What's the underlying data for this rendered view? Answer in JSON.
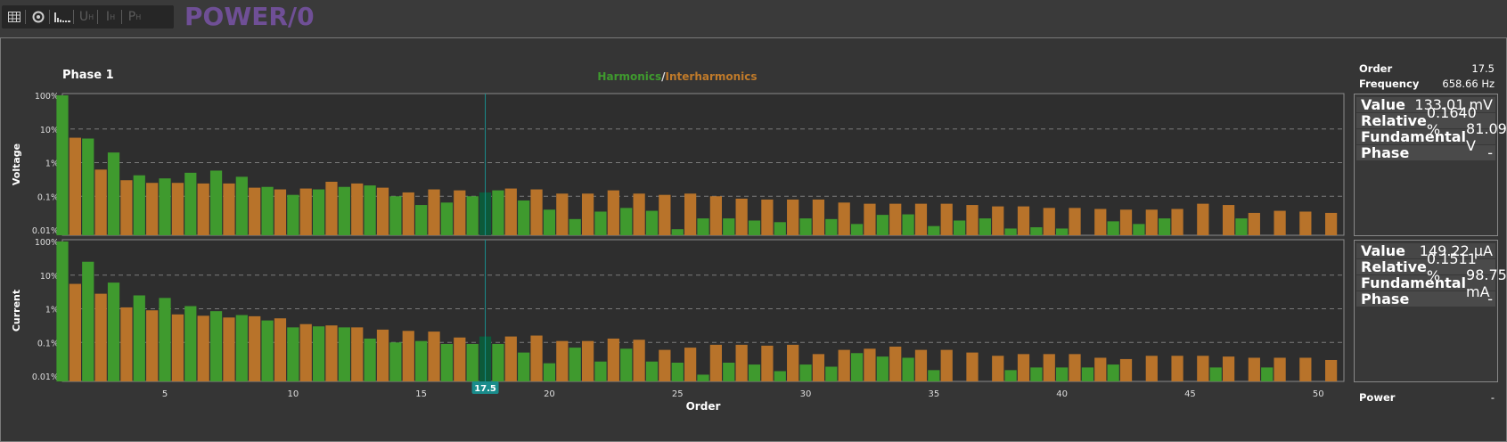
{
  "toolbar": {
    "icons": [
      "table-icon",
      "circle-icon",
      "bars-icon",
      "u-harmonics",
      "i-harmonics",
      "p-harmonics"
    ],
    "u_label": "U",
    "i_label": "I",
    "p_label": "P",
    "sub": "H"
  },
  "app_title": "POWER/0",
  "phase_title": "Phase 1",
  "legend": {
    "harmonics": "Harmonics",
    "sep": "/",
    "interharmonics": "Interharmonics"
  },
  "cursor": {
    "order": 17.5,
    "label": "17.5"
  },
  "side": {
    "order_label": "Order",
    "order_value": "17.5",
    "frequency_label": "Frequency",
    "frequency_value": "658.66 Hz",
    "voltage": [
      {
        "k": "Value",
        "v": "133.01 mV"
      },
      {
        "k": "Relative",
        "v": "0.1640 %"
      },
      {
        "k": "Fundamental",
        "v": "81.091 V"
      },
      {
        "k": "Phase",
        "v": "-"
      }
    ],
    "current": [
      {
        "k": "Value",
        "v": "149.22 µA"
      },
      {
        "k": "Relative",
        "v": "0.1511 %"
      },
      {
        "k": "Fundamental",
        "v": "98.755 mA"
      },
      {
        "k": "Phase",
        "v": "-"
      }
    ],
    "power_label": "Power",
    "power_value": "-"
  },
  "colors": {
    "harmonics": "#3f9a2e",
    "interharmonics": "#b8732a",
    "cursor": "#1a8c8c",
    "selected": "#0c5a3a"
  },
  "chart_data": {
    "type": "bar",
    "xlabel": "Order",
    "x_ticks": [
      5,
      10,
      15,
      20,
      25,
      30,
      35,
      40,
      45,
      50
    ],
    "y_ticks": [
      "100%",
      "10%",
      "1%",
      "0.1%",
      "0.01%"
    ],
    "y_scale": "log",
    "xlim": [
      1,
      51
    ],
    "grid": "dashed horizontal",
    "panels": [
      {
        "ylabel": "Voltage",
        "harmonics": [
          100,
          5.2,
          2,
          0.42,
          0.34,
          0.5,
          0.58,
          0.38,
          0.19,
          0.11,
          0.16,
          0.19,
          0.21,
          0.1,
          0.055,
          0.065,
          0.1,
          0.15,
          0.075,
          0.04,
          0.021,
          0.035,
          0.045,
          0.037,
          0.0105,
          0.022,
          0.022,
          0.019,
          0.017,
          0.022,
          0.021,
          0.015,
          0.028,
          0.029,
          0.013,
          0.019,
          0.022,
          0.011,
          0.012,
          0.011,
          0.0,
          0.018,
          0.015,
          0.022,
          0.0,
          0.0,
          0.022,
          0.0,
          0.0,
          0.0
        ],
        "interharmonics": [
          5.5,
          0.62,
          0.3,
          0.25,
          0.25,
          0.24,
          0.24,
          0.18,
          0.16,
          0.17,
          0.27,
          0.24,
          0.18,
          0.13,
          0.16,
          0.15,
          0.13,
          0.17,
          0.16,
          0.12,
          0.12,
          0.15,
          0.12,
          0.11,
          0.12,
          0.1,
          0.085,
          0.08,
          0.08,
          0.08,
          0.065,
          0.06,
          0.06,
          0.06,
          0.06,
          0.055,
          0.05,
          0.05,
          0.045,
          0.045,
          0.042,
          0.04,
          0.04,
          0.042,
          0.06,
          0.055,
          0.032,
          0.037,
          0.035,
          0.032
        ]
      },
      {
        "ylabel": "Current",
        "harmonics": [
          100,
          25,
          6,
          2.5,
          2.1,
          1.2,
          0.85,
          0.65,
          0.45,
          0.28,
          0.3,
          0.28,
          0.13,
          0.1,
          0.11,
          0.09,
          0.09,
          0.09,
          0.05,
          0.024,
          0.07,
          0.027,
          0.065,
          0.027,
          0.025,
          0.011,
          0.025,
          0.022,
          0.014,
          0.022,
          0.019,
          0.048,
          0.038,
          0.035,
          0.015,
          0.0,
          0.0,
          0.015,
          0.018,
          0.018,
          0.018,
          0.022,
          0.0,
          0.0,
          0.0,
          0.018,
          0.0,
          0.018,
          0.0,
          0.0
        ],
        "interharmonics": [
          5.5,
          2.8,
          1.1,
          0.9,
          0.68,
          0.62,
          0.55,
          0.6,
          0.52,
          0.35,
          0.32,
          0.28,
          0.24,
          0.22,
          0.21,
          0.14,
          0.15,
          0.15,
          0.16,
          0.11,
          0.11,
          0.13,
          0.12,
          0.06,
          0.07,
          0.085,
          0.085,
          0.08,
          0.085,
          0.045,
          0.06,
          0.065,
          0.075,
          0.06,
          0.06,
          0.05,
          0.04,
          0.045,
          0.045,
          0.045,
          0.035,
          0.032,
          0.04,
          0.04,
          0.04,
          0.038,
          0.035,
          0.035,
          0.035,
          0.03
        ]
      }
    ]
  }
}
